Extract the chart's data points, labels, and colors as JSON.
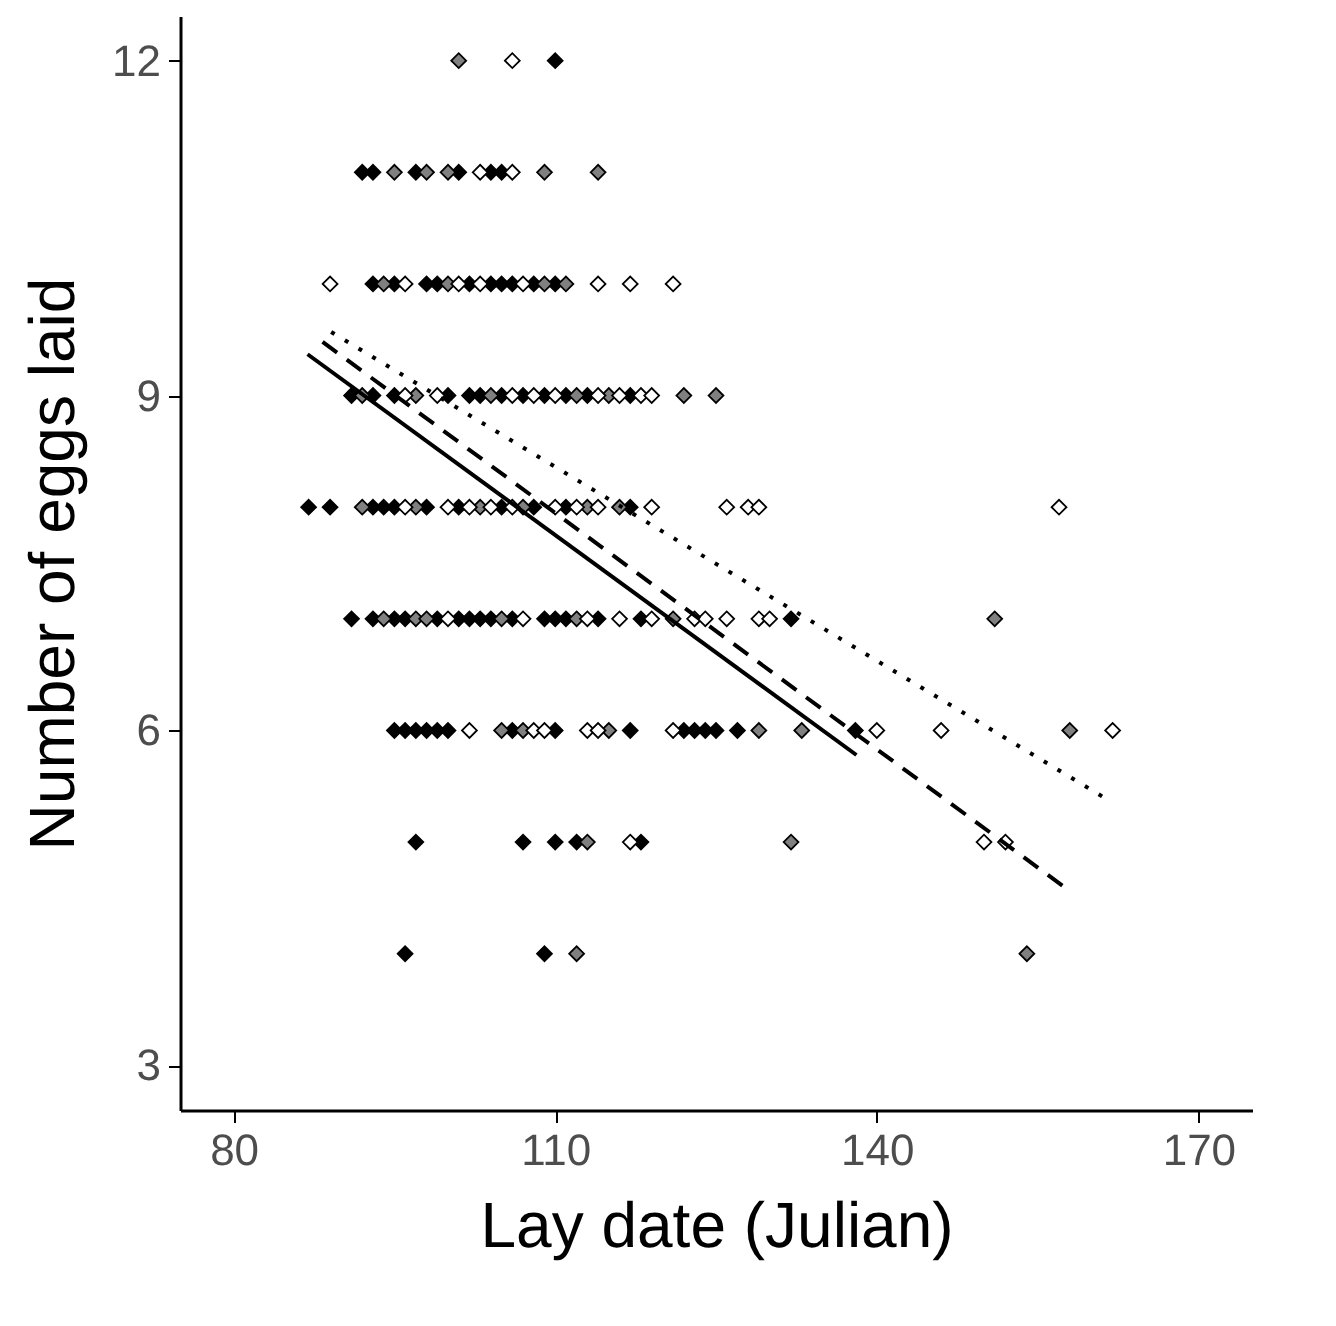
{
  "chart_data": {
    "type": "scatter",
    "xlabel": "Lay date (Julian)",
    "ylabel": "Number of eggs laid",
    "xlim": [
      75,
      175
    ],
    "ylim": [
      2.6,
      12.4
    ],
    "xticks": [
      80,
      110,
      140,
      170
    ],
    "yticks": [
      3,
      6,
      9,
      12
    ],
    "marker": "diamond",
    "series": [
      {
        "color": "#000000",
        "x": [
          110,
          92,
          93,
          97,
          101,
          104,
          105,
          93,
          95,
          98,
          99,
          102,
          104,
          105,
          106,
          108,
          110,
          91,
          93,
          95,
          100,
          102,
          103,
          105,
          107,
          109,
          111,
          113,
          117,
          87,
          89,
          93,
          94,
          95,
          98,
          101,
          105,
          108,
          111,
          117,
          91,
          93,
          95,
          96,
          99,
          101,
          102,
          103,
          104,
          106,
          109,
          110,
          111,
          114,
          118,
          132,
          95,
          96,
          97,
          98,
          99,
          100,
          106,
          110,
          117,
          122,
          123,
          124,
          125,
          127,
          138,
          97,
          107,
          110,
          112,
          118,
          96,
          109
        ],
        "values": [
          12,
          11,
          11,
          11,
          11,
          11,
          11,
          10,
          10,
          10,
          10,
          10,
          10,
          10,
          10,
          10,
          10,
          9,
          9,
          9,
          9,
          9,
          9,
          9,
          9,
          9,
          9,
          9,
          9,
          8,
          8,
          8,
          8,
          8,
          8,
          8,
          8,
          8,
          8,
          8,
          7,
          7,
          7,
          7,
          7,
          7,
          7,
          7,
          7,
          7,
          7,
          7,
          7,
          7,
          7,
          7,
          6,
          6,
          6,
          6,
          6,
          6,
          6,
          6,
          6,
          6,
          6,
          6,
          6,
          6,
          6,
          5,
          5,
          5,
          5,
          5,
          4,
          4
        ]
      },
      {
        "color": "#808080",
        "x": [
          101,
          95,
          98,
          100,
          109,
          114,
          94,
          100,
          109,
          111,
          92,
          97,
          104,
          112,
          115,
          122,
          125,
          92,
          97,
          103,
          107,
          113,
          116,
          94,
          97,
          98,
          105,
          112,
          121,
          151,
          105,
          107,
          115,
          129,
          133,
          158,
          113,
          132,
          112,
          154
        ],
        "values": [
          12,
          11,
          11,
          11,
          11,
          11,
          10,
          10,
          10,
          10,
          9,
          9,
          9,
          9,
          9,
          9,
          9,
          8,
          8,
          8,
          8,
          8,
          8,
          7,
          7,
          7,
          7,
          7,
          7,
          7,
          6,
          6,
          6,
          6,
          6,
          6,
          5,
          5,
          4,
          4
        ]
      },
      {
        "color": "#ffffff",
        "x": [
          106,
          103,
          106,
          89,
          96,
          101,
          103,
          107,
          114,
          117,
          121,
          96,
          99,
          106,
          108,
          110,
          114,
          116,
          118,
          119,
          96,
          100,
          102,
          104,
          106,
          110,
          112,
          114,
          119,
          126,
          128,
          129,
          157,
          100,
          107,
          113,
          116,
          119,
          123,
          124,
          126,
          129,
          130,
          102,
          108,
          109,
          113,
          114,
          121,
          140,
          146,
          162,
          117,
          150,
          152
        ],
        "values": [
          12,
          11,
          11,
          10,
          10,
          10,
          10,
          10,
          10,
          10,
          10,
          9,
          9,
          9,
          9,
          9,
          9,
          9,
          9,
          9,
          8,
          8,
          8,
          8,
          8,
          8,
          8,
          8,
          8,
          8,
          8,
          8,
          8,
          7,
          7,
          7,
          7,
          7,
          7,
          7,
          7,
          7,
          7,
          6,
          6,
          6,
          6,
          6,
          6,
          6,
          6,
          6,
          5,
          5,
          5
        ]
      },
      {
        "type": "line",
        "marker": "none",
        "color": "#000000",
        "line_style": "solid",
        "x": [
          86.9,
          138.1
        ],
        "values": [
          9.37,
          5.78
        ]
      },
      {
        "type": "line",
        "marker": "none",
        "color": "#000000",
        "line_style": "dashed",
        "x": [
          88.3,
          157.6
        ],
        "values": [
          9.48,
          4.59
        ]
      },
      {
        "type": "line",
        "marker": "none",
        "color": "#000000",
        "line_style": "dotted",
        "x": [
          89.1,
          161.7
        ],
        "values": [
          9.57,
          5.37
        ]
      }
    ]
  }
}
